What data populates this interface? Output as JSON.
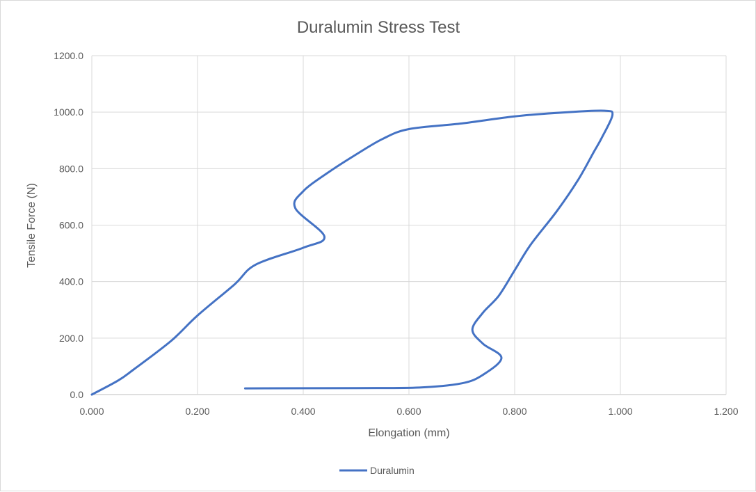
{
  "chart_data": {
    "type": "scatter",
    "title": "Duralumin Stress Test",
    "xlabel": "Elongation (mm)",
    "ylabel": "Tensile Force (N)",
    "xlim": [
      0,
      1.2
    ],
    "ylim": [
      0,
      1200
    ],
    "x_ticks": [
      "0.000",
      "0.200",
      "0.400",
      "0.600",
      "0.800",
      "1.000",
      "1.200"
    ],
    "y_ticks": [
      "0.0",
      "200.0",
      "400.0",
      "600.0",
      "800.0",
      "1000.0",
      "1200.0"
    ],
    "grid": true,
    "legend_position": "bottom",
    "series": [
      {
        "name": "Duralumin",
        "color": "#4472c4",
        "smooth": true,
        "x": [
          0.0,
          0.05,
          0.08,
          0.15,
          0.2,
          0.27,
          0.31,
          0.4,
          0.44,
          0.385,
          0.4,
          0.45,
          0.5,
          0.55,
          0.6,
          0.7,
          0.8,
          0.9,
          0.97,
          0.985,
          0.965,
          0.95,
          0.92,
          0.88,
          0.83,
          0.8,
          0.77,
          0.74,
          0.72,
          0.74,
          0.775,
          0.74,
          0.7,
          0.62,
          0.5,
          0.29
        ],
        "y": [
          0,
          50,
          90,
          190,
          280,
          390,
          460,
          520,
          560,
          660,
          720,
          790,
          850,
          905,
          940,
          960,
          985,
          1000,
          1005,
          990,
          910,
          860,
          760,
          650,
          530,
          440,
          350,
          290,
          230,
          180,
          130,
          70,
          40,
          25,
          23,
          22
        ]
      }
    ]
  }
}
